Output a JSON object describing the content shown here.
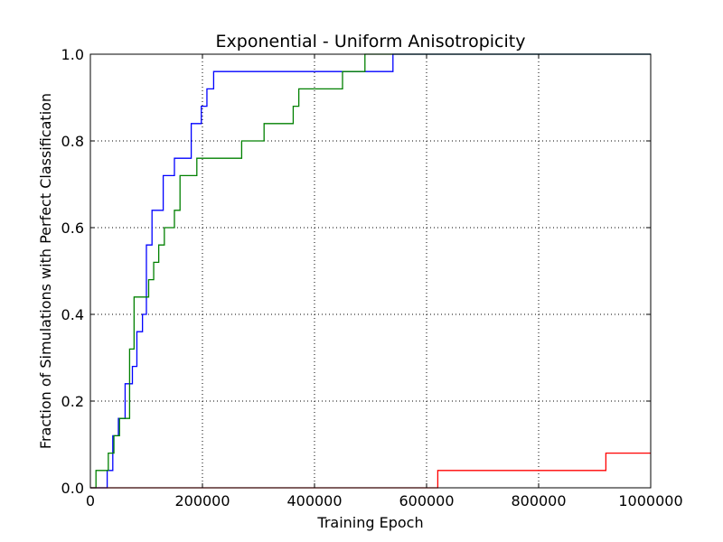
{
  "chart_data": {
    "type": "line",
    "step": true,
    "title": "Exponential - Uniform Anisotropicity",
    "xlabel": "Training Epoch",
    "ylabel": "Fraction of Simulations with Perfect Classification",
    "xlim": [
      0,
      1000000
    ],
    "ylim": [
      0,
      1.0
    ],
    "xticks": [
      0,
      200000,
      400000,
      600000,
      800000,
      1000000
    ],
    "xtick_labels": [
      "0",
      "200000",
      "400000",
      "600000",
      "800000",
      "1000000"
    ],
    "yticks": [
      0,
      0.2,
      0.4,
      0.6,
      0.8,
      1.0
    ],
    "ytick_labels": [
      "0.0",
      "0.2",
      "0.4",
      "0.6",
      "0.8",
      "1.0"
    ],
    "grid": true,
    "series": [
      {
        "color": "#0000ff",
        "x": [
          0,
          30000,
          40000,
          50000,
          62000,
          75000,
          83000,
          93000,
          100000,
          110000,
          130000,
          150000,
          180000,
          198000,
          208000,
          220000,
          540000
        ],
        "y": [
          0,
          0.04,
          0.12,
          0.16,
          0.24,
          0.28,
          0.36,
          0.4,
          0.56,
          0.64,
          0.72,
          0.76,
          0.84,
          0.88,
          0.92,
          0.96,
          1.0
        ]
      },
      {
        "color": "#008000",
        "x": [
          0,
          10000,
          32000,
          42000,
          52000,
          70000,
          78000,
          90000,
          104000,
          113000,
          122000,
          132000,
          150000,
          160000,
          190000,
          270000,
          310000,
          362000,
          372000,
          450000,
          490000
        ],
        "y": [
          0,
          0.04,
          0.08,
          0.12,
          0.16,
          0.32,
          0.44,
          0.44,
          0.48,
          0.52,
          0.56,
          0.6,
          0.64,
          0.72,
          0.76,
          0.8,
          0.84,
          0.88,
          0.92,
          0.96,
          1.0
        ]
      },
      {
        "color": "#ff0000",
        "x": [
          0,
          620000,
          920000
        ],
        "y": [
          0,
          0.04,
          0.08
        ]
      }
    ]
  }
}
